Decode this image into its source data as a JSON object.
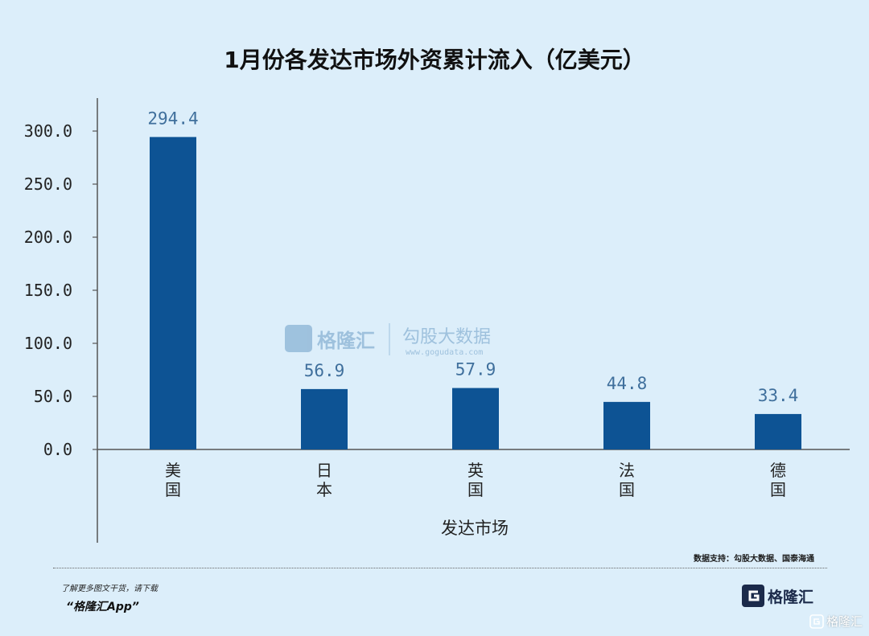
{
  "chart_data": {
    "type": "bar",
    "title": "1月份各发达市场外资累计流入（亿美元）",
    "xlabel": "发达市场",
    "ylabel": "",
    "categories": [
      "美国",
      "日本",
      "英国",
      "法国",
      "德国"
    ],
    "values": [
      294.4,
      56.9,
      57.9,
      44.8,
      33.4
    ],
    "value_labels": [
      "294.4",
      "56.9",
      "57.9",
      "44.8",
      "33.4"
    ],
    "ylim": [
      0,
      300
    ],
    "yticks": [
      0,
      50,
      100,
      150,
      200,
      250,
      300
    ],
    "ytick_labels": [
      "0.0",
      "50.0",
      "100.0",
      "150.0",
      "200.0",
      "250.0",
      "300.0"
    ],
    "bar_color": "#0d5394",
    "value_label_color": "#3f6f9c",
    "grid": false,
    "legend": "none"
  },
  "watermark": {
    "brand": "格隆汇",
    "partner": "勾股大数据",
    "partner_url": "www.gogudata.com"
  },
  "footer": {
    "source": "数据支持：勾股大数据、国泰海通",
    "note": "了解更多图文干货，请下载",
    "app": "“格隆汇App”",
    "logo_text": "格隆汇",
    "corner_text": "格隆汇"
  },
  "colors": {
    "background": "#dceefa",
    "axis": "#555555"
  }
}
